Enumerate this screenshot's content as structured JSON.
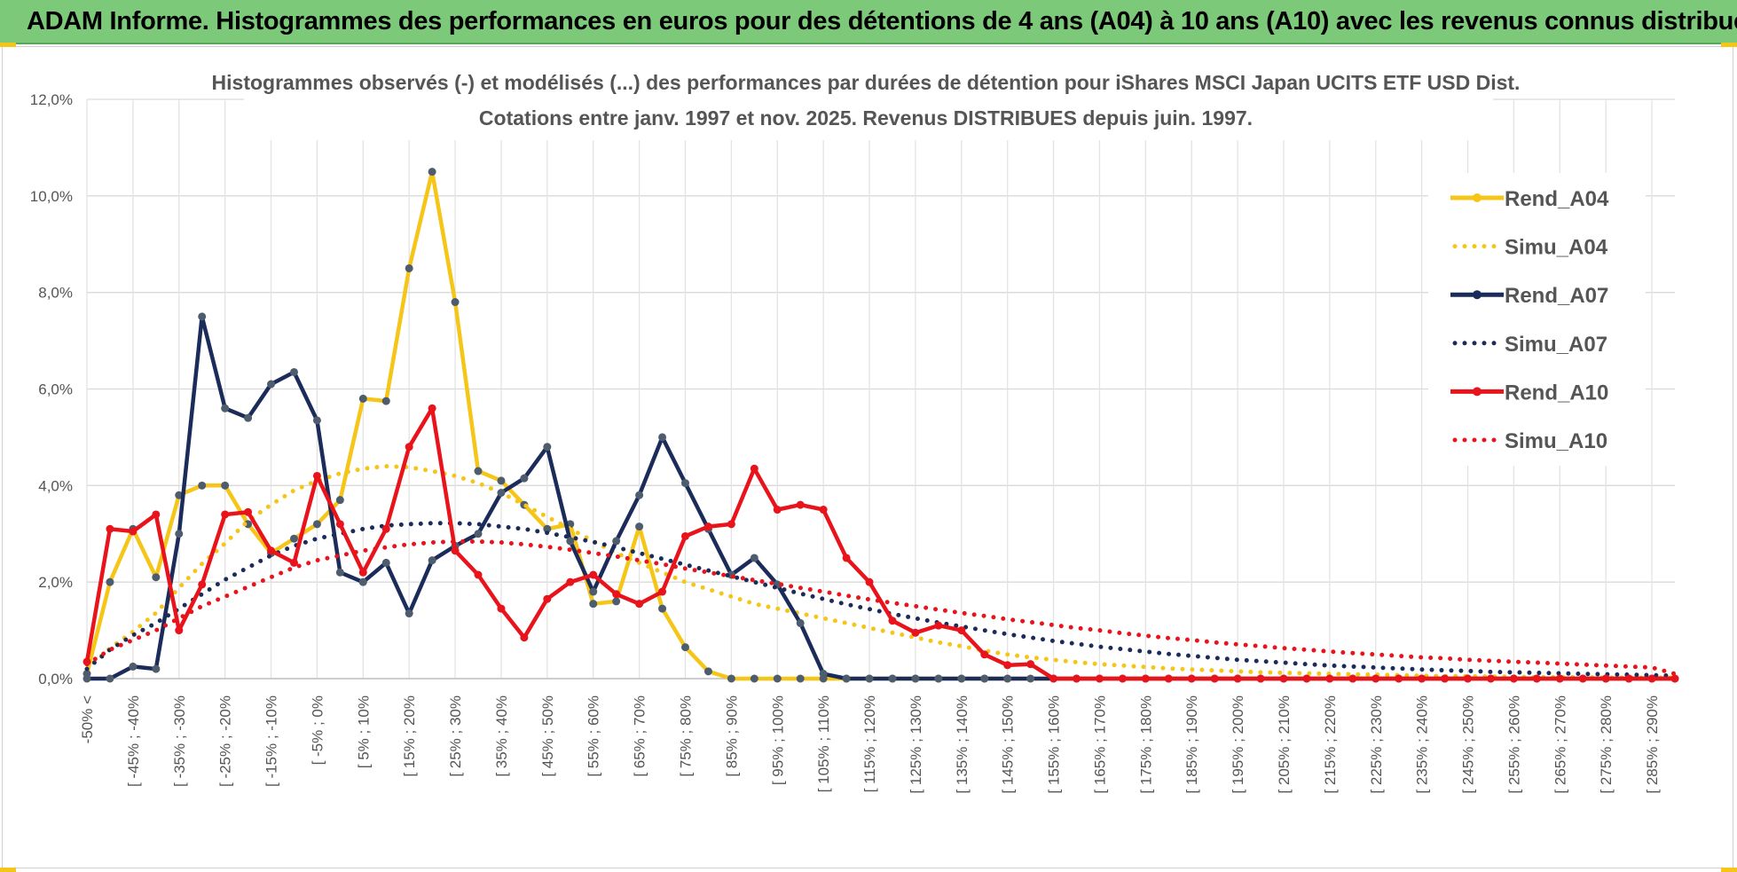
{
  "banner": {
    "title": "ADAM Informe. Histogrammes des performances en euros pour des détentions de 4 ans (A04) à 10 ans (A10) avec les revenus connus distribués"
  },
  "chart_data": {
    "type": "line",
    "title": "Histogrammes observés (-) et modélisés (...) des performances par durées de détention pour iShares MSCI Japan UCITS ETF USD Dist.",
    "subtitle": "Cotations entre janv. 1997 et nov. 2025. Revenus DISTRIBUES depuis juin. 1997.",
    "xlabel": "",
    "ylabel": "",
    "ylim": [
      0,
      12
    ],
    "yticks": [
      "0,0%",
      "2,0%",
      "4,0%",
      "6,0%",
      "8,0%",
      "10,0%",
      "12,0%"
    ],
    "grid": true,
    "legend_position": "right",
    "categories": [
      "-50% <",
      "",
      "[ -45% ; -40%",
      "",
      "[ -35% ; -30%",
      "",
      "[ -25% ; -20%",
      "",
      "[ -15% ; -10%",
      "",
      "[ -5% ; 0%",
      "",
      "[ 5% ; 10%",
      "",
      "[ 15% ; 20%",
      "",
      "[ 25% ; 30%",
      "",
      "[ 35% ; 40%",
      "",
      "[ 45% ; 50%",
      "",
      "[ 55% ; 60%",
      "",
      "[ 65% ; 70%",
      "",
      "[ 75% ; 80%",
      "",
      "[ 85% ; 90%",
      "",
      "[ 95% ; 100%",
      "",
      "[ 105% ; 110%",
      "",
      "[ 115% ; 120%",
      "",
      "[ 125% ; 130%",
      "",
      "[ 135% ; 140%",
      "",
      "[ 145% ; 150%",
      "",
      "[ 155% ; 160%",
      "",
      "[ 165% ; 170%",
      "",
      "[ 175% ; 180%",
      "",
      "[ 185% ; 190%",
      "",
      "[ 195% ; 200%",
      "",
      "[ 205% ; 210%",
      "",
      "[ 215% ; 220%",
      "",
      "[ 225% ; 230%",
      "",
      "[ 235% ; 240%",
      "",
      "[ 245% ; 250%",
      "",
      "[ 255% ; 260%",
      "",
      "[ 265% ; 270%",
      "",
      "[ 275% ; 280%",
      "",
      "[ 285% ; 290%",
      ""
    ],
    "series": [
      {
        "name": "Rend_A04",
        "style": "solid",
        "color": "#f5c518",
        "values": [
          0.1,
          2.0,
          3.1,
          2.1,
          3.8,
          4.0,
          4.0,
          3.2,
          2.6,
          2.9,
          3.2,
          3.7,
          5.8,
          5.75,
          8.5,
          10.5,
          7.8,
          4.3,
          4.1,
          3.6,
          3.1,
          3.2,
          1.55,
          1.6,
          3.15,
          1.45,
          0.65,
          0.15,
          0,
          0,
          0,
          0,
          0,
          0,
          0,
          0,
          0,
          0,
          0,
          0,
          0,
          0,
          0,
          0,
          0,
          0,
          0,
          0,
          0,
          0,
          0,
          0,
          0,
          0,
          0,
          0,
          0,
          0,
          0,
          0,
          0,
          0,
          0,
          0,
          0,
          0,
          0,
          0,
          0,
          0
        ]
      },
      {
        "name": "Simu_A04",
        "style": "dotted",
        "color": "#f5c518",
        "values": [
          0.2,
          0.63,
          0.97,
          1.36,
          1.88,
          2.38,
          2.8,
          3.27,
          3.6,
          3.9,
          4.1,
          4.25,
          4.35,
          4.4,
          4.38,
          4.3,
          4.2,
          4.05,
          3.85,
          3.6,
          3.35,
          3.1,
          2.85,
          2.6,
          2.4,
          2.2,
          2.0,
          1.85,
          1.7,
          1.55,
          1.45,
          1.35,
          1.25,
          1.15,
          1.05,
          0.95,
          0.85,
          0.75,
          0.67,
          0.58,
          0.5,
          0.44,
          0.39,
          0.34,
          0.3,
          0.27,
          0.24,
          0.21,
          0.19,
          0.17,
          0.15,
          0.13,
          0.12,
          0.11,
          0.1,
          0.09,
          0.08,
          0.07,
          0.06,
          0.05,
          0.05,
          0.04,
          0.04,
          0.03,
          0.03,
          0.03,
          0.02,
          0.02,
          0.02,
          0.02
        ]
      },
      {
        "name": "Rend_A07",
        "style": "solid",
        "color": "#1b2b5a",
        "values": [
          0,
          0,
          0.25,
          0.2,
          3.0,
          7.5,
          5.6,
          5.4,
          6.1,
          6.35,
          5.35,
          2.2,
          2.0,
          2.4,
          1.35,
          2.45,
          2.75,
          3.0,
          3.85,
          4.15,
          4.8,
          2.85,
          1.8,
          2.85,
          3.8,
          5.0,
          4.05,
          3.1,
          2.15,
          2.5,
          1.95,
          1.15,
          0.1,
          0,
          0,
          0,
          0,
          0,
          0,
          0,
          0,
          0,
          0,
          0,
          0,
          0,
          0,
          0,
          0,
          0,
          0,
          0,
          0,
          0,
          0,
          0,
          0,
          0,
          0,
          0,
          0,
          0,
          0,
          0,
          0,
          0,
          0,
          0,
          0,
          0
        ]
      },
      {
        "name": "Simu_A07",
        "style": "dotted",
        "color": "#1b2b5a",
        "values": [
          0.2,
          0.6,
          0.9,
          1.15,
          1.45,
          1.75,
          2.05,
          2.3,
          2.55,
          2.75,
          2.9,
          3.0,
          3.1,
          3.17,
          3.2,
          3.22,
          3.22,
          3.2,
          3.15,
          3.1,
          3.02,
          2.93,
          2.83,
          2.72,
          2.6,
          2.48,
          2.36,
          2.24,
          2.12,
          2.0,
          1.88,
          1.76,
          1.65,
          1.54,
          1.44,
          1.34,
          1.25,
          1.16,
          1.08,
          1.0,
          0.92,
          0.85,
          0.78,
          0.72,
          0.66,
          0.61,
          0.56,
          0.51,
          0.47,
          0.43,
          0.39,
          0.36,
          0.33,
          0.3,
          0.27,
          0.25,
          0.23,
          0.21,
          0.19,
          0.17,
          0.16,
          0.14,
          0.13,
          0.12,
          0.11,
          0.1,
          0.09,
          0.08,
          0.07,
          0.06
        ]
      },
      {
        "name": "Rend_A10",
        "style": "solid",
        "color": "#e8131b",
        "values": [
          0.35,
          3.1,
          3.05,
          3.4,
          1.0,
          1.95,
          3.4,
          3.45,
          2.65,
          2.4,
          4.2,
          3.2,
          2.2,
          3.1,
          4.8,
          5.6,
          2.65,
          2.15,
          1.45,
          0.85,
          1.65,
          2.0,
          2.15,
          1.75,
          1.55,
          1.8,
          2.95,
          3.15,
          3.2,
          4.35,
          3.5,
          3.6,
          3.5,
          2.5,
          2.0,
          1.2,
          0.95,
          1.1,
          1.0,
          0.5,
          0.28,
          0.3,
          0,
          0,
          0,
          0,
          0,
          0,
          0,
          0,
          0,
          0,
          0,
          0,
          0,
          0,
          0,
          0,
          0,
          0,
          0,
          0,
          0,
          0,
          0,
          0,
          0,
          0,
          0,
          0
        ]
      },
      {
        "name": "Simu_A10",
        "style": "dotted",
        "color": "#e8131b",
        "values": [
          0.3,
          0.6,
          0.8,
          1.0,
          1.25,
          1.5,
          1.7,
          1.9,
          2.1,
          2.3,
          2.45,
          2.55,
          2.65,
          2.72,
          2.78,
          2.82,
          2.84,
          2.84,
          2.82,
          2.78,
          2.73,
          2.67,
          2.6,
          2.53,
          2.45,
          2.37,
          2.28,
          2.2,
          2.12,
          2.04,
          1.96,
          1.88,
          1.8,
          1.72,
          1.64,
          1.57,
          1.5,
          1.43,
          1.36,
          1.3,
          1.23,
          1.17,
          1.11,
          1.05,
          1.0,
          0.94,
          0.89,
          0.84,
          0.8,
          0.75,
          0.71,
          0.67,
          0.63,
          0.6,
          0.56,
          0.53,
          0.5,
          0.47,
          0.44,
          0.42,
          0.39,
          0.37,
          0.35,
          0.33,
          0.31,
          0.29,
          0.27,
          0.25,
          0.23,
          0.1
        ]
      }
    ]
  }
}
